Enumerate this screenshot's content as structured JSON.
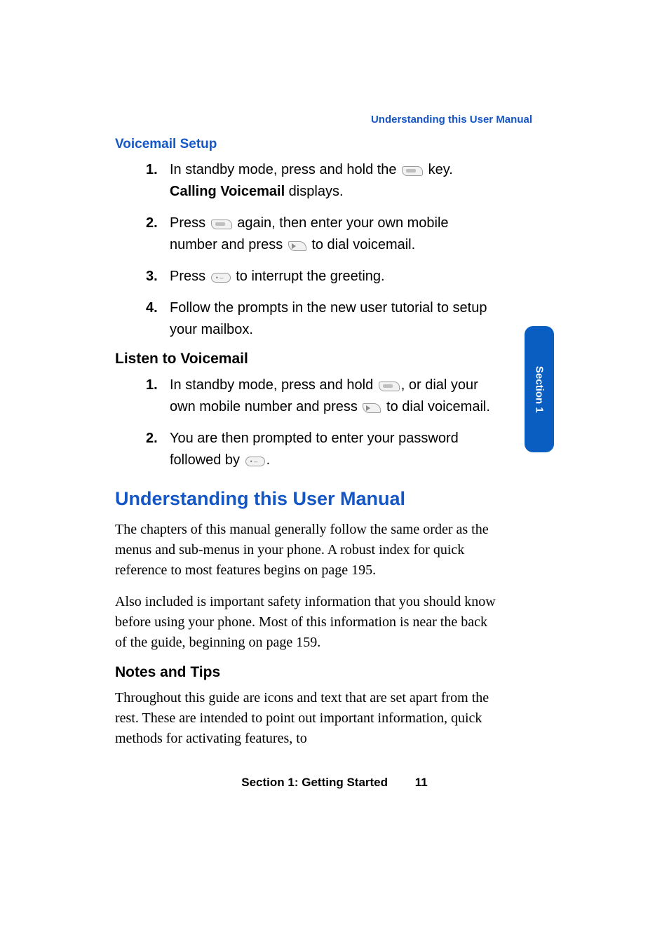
{
  "colors": {
    "link_blue": "#1556c6",
    "tab_blue": "#0a5ec2",
    "black": "#000000",
    "page_bg": "#ffffff"
  },
  "fontsizes": {
    "running_header": 15,
    "heading_small": 19,
    "heading_black": 21,
    "heading_large": 27,
    "body": 20,
    "footer": 17,
    "side_tab": 15
  },
  "running_header": "Understanding this User Manual",
  "voicemail_setup": {
    "heading": "Voicemail Setup",
    "steps": [
      {
        "n": "1.",
        "pre": "In standby mode, press and hold the ",
        "icon": "key1",
        "mid": " key. ",
        "bold": "Calling Voicemail",
        "post": " displays."
      },
      {
        "n": "2.",
        "pre": "Press ",
        "icon": "key1",
        "mid": " again, then enter your own mobile number and press ",
        "icon2": "send",
        "post": " to dial voicemail."
      },
      {
        "n": "3.",
        "pre": "Press ",
        "icon": "pound",
        "post": " to interrupt the greeting."
      },
      {
        "n": "4.",
        "pre": "Follow the prompts in the new user tutorial to setup your mailbox."
      }
    ]
  },
  "listen": {
    "heading": "Listen to Voicemail",
    "steps": [
      {
        "n": "1.",
        "pre": "In standby mode, press and hold ",
        "icon": "key1",
        "mid": ", or dial your own mobile number and press ",
        "icon2": "send",
        "post": " to dial voicemail."
      },
      {
        "n": "2.",
        "pre": "You are then prompted to enter your password followed by ",
        "icon": "pound",
        "post": "."
      }
    ]
  },
  "understanding": {
    "heading": "Understanding this User Manual",
    "para1": "The chapters of this manual generally follow the same order as the menus and sub-menus in your phone. A robust index for quick reference to most features begins on page 195.",
    "para2": "Also included is important safety information that you should know before using your phone. Most of this information is near the back of the guide, beginning on page 159."
  },
  "notes": {
    "heading": "Notes and Tips",
    "para": "Throughout this guide are icons and text that are set apart from the rest. These are intended to point out important information, quick methods for activating features, to"
  },
  "side_tab": "Section 1",
  "footer": {
    "label": "Section 1: Getting Started",
    "page": "11"
  }
}
